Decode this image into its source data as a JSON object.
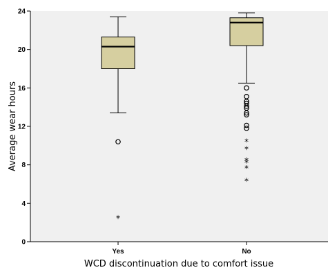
{
  "chart_data": {
    "type": "boxplot",
    "title": "",
    "xlabel": "WCD discontinuation due to comfort issue",
    "ylabel": "Average wear hours",
    "ylim": [
      0,
      24
    ],
    "yticks": [
      0,
      4,
      8,
      12,
      16,
      20,
      24
    ],
    "grid": false,
    "categories": [
      "Yes",
      "No"
    ],
    "box_color": "#d6cfa0",
    "plot_background": "#f0f0f0",
    "boxes": [
      {
        "category": "Yes",
        "whisker_low": 13.4,
        "q1": 18.0,
        "median": 20.3,
        "q3": 21.3,
        "whisker_high": 23.4,
        "outliers": [
          10.4
        ],
        "extremes": [
          2.4
        ]
      },
      {
        "category": "No",
        "whisker_low": 16.5,
        "q1": 20.4,
        "median": 22.8,
        "q3": 23.3,
        "whisker_high": 23.8,
        "outliers": [
          16.0,
          15.1,
          14.6,
          14.4,
          14.1,
          13.9,
          13.4,
          13.2,
          12.1,
          11.8
        ],
        "extremes": [
          10.4,
          9.6,
          8.4,
          8.2,
          7.6,
          6.3
        ]
      }
    ]
  }
}
